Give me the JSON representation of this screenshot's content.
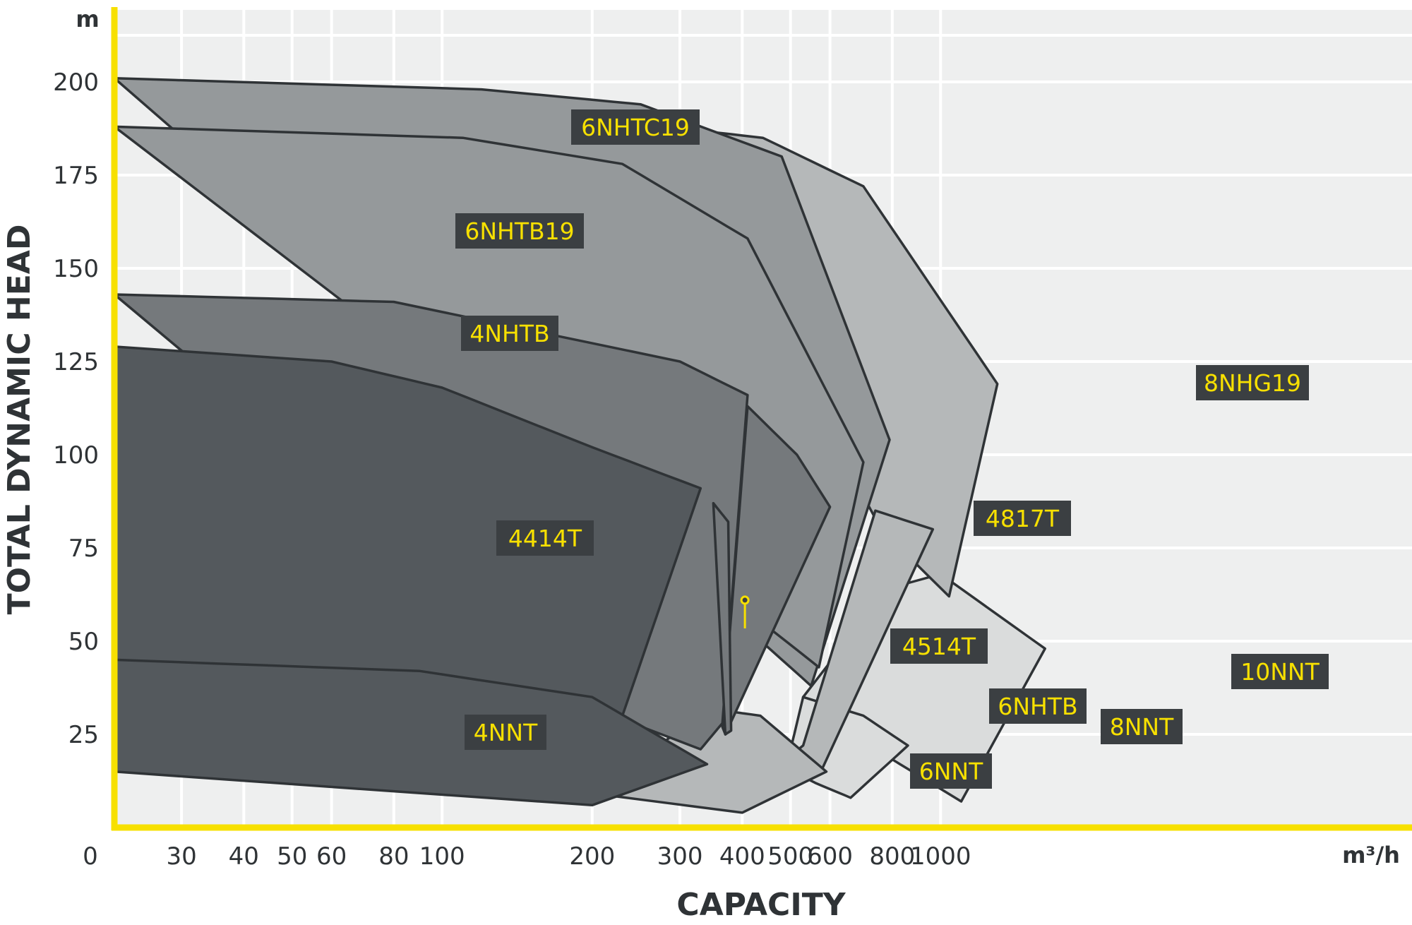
{
  "chart_data": {
    "type": "area",
    "title": "",
    "xlabel": "CAPACITY",
    "ylabel": "TOTAL DYNAMIC HEAD",
    "x_unit": "m³/h",
    "y_unit": "m",
    "x_scale": "log",
    "x_ticks": [
      "0",
      "30",
      "40",
      "50",
      "60",
      "80",
      "100",
      "200",
      "300",
      "400",
      "500",
      "600",
      "800",
      "1000"
    ],
    "y_ticks": [
      "25",
      "50",
      "75",
      "100",
      "125",
      "150",
      "175",
      "200"
    ],
    "y_range": [
      0,
      212
    ],
    "grid": true,
    "colors": {
      "axis": "#f7e000",
      "background": "#eeefef",
      "gridline": "#ffffff",
      "outline": "#2f3336",
      "label_bg": "#3b3f42",
      "label_text": "#f7e000"
    },
    "regions": [
      {
        "name": "10NNT",
        "fill": "#dadcdc",
        "x": [
          780,
          1000,
          1620,
          1100,
          720,
          530
        ],
        "y": [
          64,
          68,
          48,
          7,
          22,
          35
        ]
      },
      {
        "name": "8NNT",
        "fill": "#dadcdc",
        "x": [
          530,
          700,
          860,
          660,
          560,
          490
        ],
        "y": [
          35,
          30,
          22,
          8,
          12,
          16
        ]
      },
      {
        "name": "8NHG19",
        "fill": "#b5b8b9",
        "x": [
          280,
          440,
          700,
          1300,
          1040,
          760
        ],
        "y": [
          188,
          185,
          172,
          119,
          62,
          80
        ]
      },
      {
        "name": "6NHTB",
        "fill": "#b5b8b9",
        "x": [
          740,
          965,
          580,
          476,
          530
        ],
        "y": [
          85,
          80,
          16,
          17,
          22
        ]
      },
      {
        "name": "6NNT",
        "fill": "#b5b8b9",
        "x": [
          340,
          435,
          590,
          400,
          205
        ],
        "y": [
          32,
          30,
          15,
          4,
          9
        ]
      },
      {
        "name": "6NHTC19",
        "fill": "#95999b",
        "x": [
          22,
          120,
          250,
          480,
          790,
          550,
          420
        ],
        "y": [
          201,
          198,
          194,
          180,
          104,
          38,
          52
        ]
      },
      {
        "name": "6NHTB19",
        "fill": "#95999b",
        "x": [
          22,
          110,
          230,
          410,
          700,
          570,
          420
        ],
        "y": [
          188,
          185,
          178,
          158,
          98,
          43,
          57
        ]
      },
      {
        "name": "4817T",
        "fill": "#75797c",
        "x": [
          410,
          515,
          600,
          370,
          365
        ],
        "y": [
          113,
          100,
          86,
          25,
          27
        ]
      },
      {
        "name": "4NHTB",
        "fill": "#75797c",
        "x": [
          22,
          80,
          300,
          410,
          365,
          330,
          230
        ],
        "y": [
          143,
          141,
          125,
          116,
          28,
          21,
          29
        ]
      },
      {
        "name": "4514T",
        "fill": "#75797c",
        "x": [
          350,
          375,
          380,
          370
        ],
        "y": [
          87,
          82,
          26,
          25
        ]
      },
      {
        "name": "4414T",
        "fill": "#54595d",
        "x": [
          22,
          60,
          100,
          200,
          330,
          230,
          22
        ],
        "y": [
          129,
          125,
          118,
          102,
          91,
          30,
          45
        ]
      },
      {
        "name": "4NNT",
        "fill": "#54595d",
        "x": [
          22,
          90,
          200,
          340,
          200,
          22
        ],
        "y": [
          45,
          42,
          35,
          17,
          6,
          15
        ]
      }
    ],
    "label_marker": {
      "name": "4514T",
      "x": 405,
      "y": 61
    }
  }
}
